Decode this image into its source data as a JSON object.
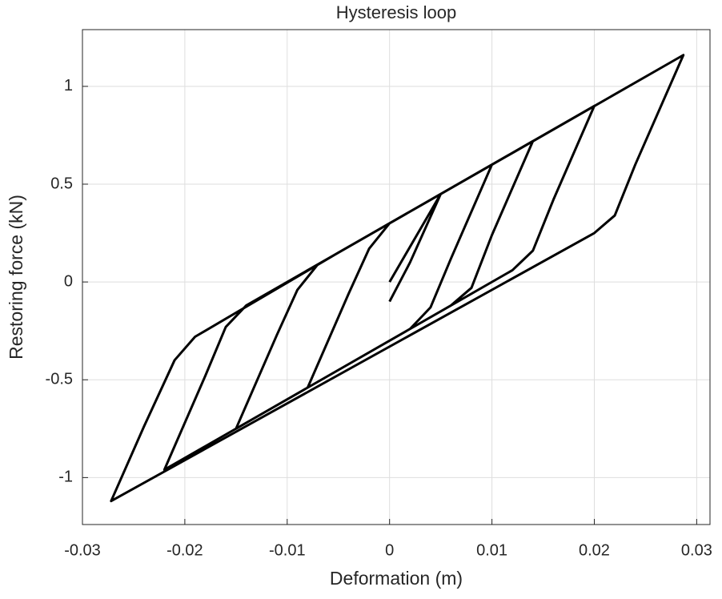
{
  "chart_data": {
    "type": "line",
    "title": "Hysteresis loop",
    "xlabel": "Deformation (m)",
    "ylabel": "Restoring force (kN)",
    "x": [
      0,
      0.005,
      0.01,
      0.006,
      0.004,
      0.002,
      -0.008,
      -0.004,
      -0.002,
      0,
      0.014,
      0.01,
      0.008,
      0.006,
      -0.015,
      -0.011,
      -0.009,
      -0.007,
      0.02,
      0.016,
      0.014,
      0.012,
      -0.022,
      -0.018,
      -0.016,
      -0.014,
      0.0287,
      0.024,
      0.022,
      0.02,
      -0.0272,
      -0.024,
      -0.021,
      -0.019,
      -0.005,
      0.005,
      0.002,
      0
    ],
    "values": [
      0,
      0.45,
      0.6,
      0.12,
      -0.13,
      -0.24,
      -0.54,
      -0.06,
      0.17,
      0.3,
      0.72,
      0.24,
      -0.03,
      -0.12,
      -0.75,
      -0.27,
      -0.04,
      0.09,
      0.9,
      0.42,
      0.16,
      0.06,
      -0.96,
      -0.48,
      -0.23,
      -0.12,
      1.16,
      0.6,
      0.34,
      0.25,
      -1.12,
      -0.74,
      -0.4,
      -0.28,
      0.15,
      0.45,
      0.1,
      -0.1
    ],
    "color": "#000000",
    "xlim": [
      -0.03,
      0.0313
    ],
    "ylim": [
      -1.24,
      1.29
    ],
    "xticks": [
      -0.03,
      -0.02,
      -0.01,
      0,
      0.01,
      0.02,
      0.03
    ],
    "yticks": [
      -1,
      -0.5,
      0,
      0.5,
      1
    ],
    "grid": true
  }
}
